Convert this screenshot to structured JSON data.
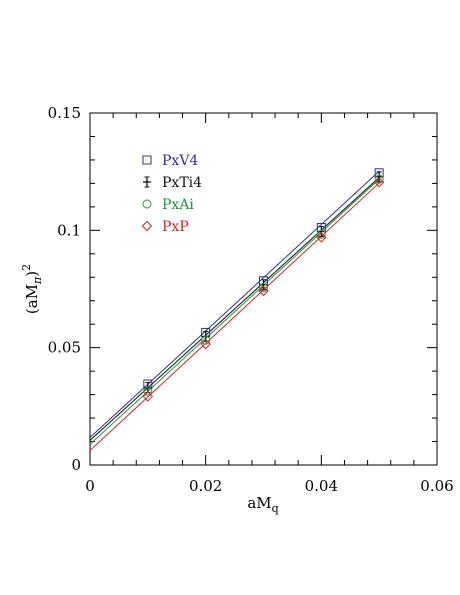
{
  "chart_data": {
    "type": "scatter",
    "xlabel": "aM",
    "xlabel_sub": "q",
    "ylabel_prefix": "(aM",
    "ylabel_sub": "π",
    "ylabel_suffix": ")",
    "ylabel_sup": "2",
    "xlim": [
      0,
      0.06
    ],
    "ylim": [
      0,
      0.15
    ],
    "xticks": [
      0,
      0.02,
      0.04,
      0.06
    ],
    "xtick_labels": [
      "0",
      "0.02",
      "0.04",
      "0.06"
    ],
    "yticks": [
      0,
      0.05,
      0.1,
      0.15
    ],
    "ytick_labels": [
      "0",
      "0.05",
      "0.1",
      "0.15"
    ],
    "grid": false,
    "legend_position": "top-left",
    "series": [
      {
        "name": "PxV4",
        "color": "#2e3192",
        "marker": "square",
        "x": [
          0.01,
          0.02,
          0.03,
          0.04,
          0.05
        ],
        "y": [
          0.0345,
          0.0565,
          0.0785,
          0.1012,
          0.1245
        ],
        "fit": [
          0.0117,
          0.0227
        ]
      },
      {
        "name": "PxTi4",
        "color": "#111111",
        "marker": "plus",
        "x": [
          0.01,
          0.02,
          0.03,
          0.04,
          0.05
        ],
        "y": [
          0.033,
          0.0548,
          0.0768,
          0.0995,
          0.1228
        ],
        "fit": [
          0.0105,
          0.0224
        ]
      },
      {
        "name": "PxAi",
        "color": "#1a9a3a",
        "marker": "circle",
        "x": [
          0.01,
          0.02,
          0.03,
          0.04,
          0.05
        ],
        "y": [
          0.0315,
          0.0532,
          0.0755,
          0.0983,
          0.1218
        ],
        "fit": [
          0.0088,
          0.0226
        ]
      },
      {
        "name": "PxP",
        "color": "#e02020",
        "marker": "diamond",
        "x": [
          0.01,
          0.02,
          0.03,
          0.04,
          0.05
        ],
        "y": [
          0.0292,
          0.0515,
          0.0742,
          0.097,
          0.1205
        ],
        "fit": [
          0.0062,
          0.0228
        ]
      }
    ]
  }
}
